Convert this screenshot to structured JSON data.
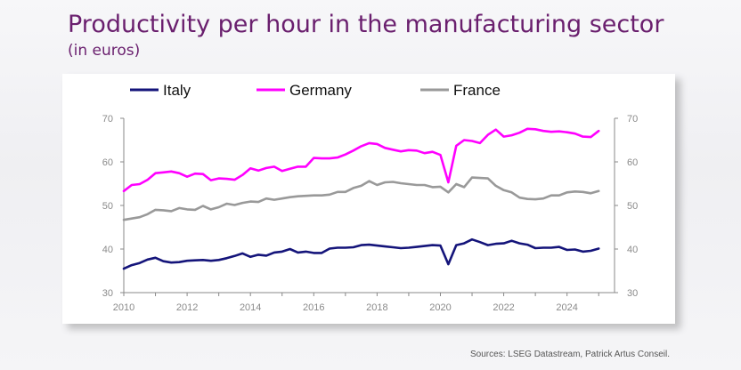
{
  "header": {
    "title": "Productivity per hour in the manufacturing sector",
    "subtitle": "(in euros)"
  },
  "footer": {
    "source": "Sources: LSEG Datastream, Patrick Artus Conseil."
  },
  "colors": {
    "title": "#6a1f6e",
    "italy": "#14147a",
    "germany": "#ff00ff",
    "france": "#999999",
    "axis": "#888888"
  },
  "chart_data": {
    "type": "line",
    "title": "Productivity per hour in the manufacturing sector",
    "subtitle": "(in euros)",
    "xlim": [
      2010,
      2025.5
    ],
    "ylim": [
      30,
      70
    ],
    "x_ticks": [
      "2010",
      "2012",
      "2014",
      "2016",
      "2018",
      "2020",
      "2022",
      "2024"
    ],
    "y_ticks": [
      "30",
      "40",
      "50",
      "60",
      "70"
    ],
    "right_axis_ticks": [
      "30",
      "40",
      "50",
      "60",
      "70"
    ],
    "legend_position": "top",
    "grid": false,
    "x": [
      2010.0,
      2010.25,
      2010.5,
      2010.75,
      2011.0,
      2011.25,
      2011.5,
      2011.75,
      2012.0,
      2012.25,
      2012.5,
      2012.75,
      2013.0,
      2013.25,
      2013.5,
      2013.75,
      2014.0,
      2014.25,
      2014.5,
      2014.75,
      2015.0,
      2015.25,
      2015.5,
      2015.75,
      2016.0,
      2016.25,
      2016.5,
      2016.75,
      2017.0,
      2017.25,
      2017.5,
      2017.75,
      2018.0,
      2018.25,
      2018.5,
      2018.75,
      2019.0,
      2019.25,
      2019.5,
      2019.75,
      2020.0,
      2020.25,
      2020.5,
      2020.75,
      2021.0,
      2021.25,
      2021.5,
      2021.75,
      2022.0,
      2022.25,
      2022.5,
      2022.75,
      2023.0,
      2023.25,
      2023.5,
      2023.75,
      2024.0,
      2024.25,
      2024.5,
      2024.75,
      2025.0
    ],
    "series": [
      {
        "name": "Italy",
        "color": "#14147a",
        "values": [
          35.5,
          36.3,
          36.8,
          37.6,
          38.0,
          37.2,
          36.9,
          37.0,
          37.3,
          37.4,
          37.5,
          37.3,
          37.5,
          37.9,
          38.4,
          39.0,
          38.2,
          38.7,
          38.5,
          39.2,
          39.4,
          40.0,
          39.2,
          39.4,
          39.1,
          39.1,
          40.1,
          40.3,
          40.3,
          40.4,
          40.9,
          41.0,
          40.8,
          40.6,
          40.4,
          40.2,
          40.3,
          40.5,
          40.7,
          40.9,
          40.8,
          36.5,
          40.9,
          41.3,
          42.2,
          41.6,
          40.9,
          41.2,
          41.3,
          41.9,
          41.3,
          41.0,
          40.2,
          40.3,
          40.3,
          40.5,
          39.8,
          39.9,
          39.4,
          39.6,
          40.1
        ]
      },
      {
        "name": "Germany",
        "color": "#ff00ff",
        "values": [
          53.3,
          54.7,
          54.9,
          55.9,
          57.4,
          57.6,
          57.8,
          57.4,
          56.6,
          57.3,
          57.2,
          55.8,
          56.2,
          56.1,
          55.9,
          57.0,
          58.5,
          58.0,
          58.6,
          58.9,
          57.9,
          58.4,
          58.9,
          58.9,
          60.9,
          60.8,
          60.8,
          61.0,
          61.7,
          62.6,
          63.6,
          64.3,
          64.1,
          63.2,
          62.8,
          62.4,
          62.7,
          62.6,
          62.0,
          62.3,
          61.6,
          55.3,
          63.7,
          65.0,
          64.8,
          64.3,
          66.2,
          67.4,
          65.8,
          66.1,
          66.7,
          67.6,
          67.5,
          67.1,
          66.9,
          67.0,
          66.8,
          66.5,
          65.8,
          65.7,
          67.1
        ]
      },
      {
        "name": "France",
        "color": "#999999",
        "values": [
          46.7,
          47.0,
          47.3,
          48.0,
          49.0,
          48.9,
          48.7,
          49.4,
          49.1,
          49.0,
          49.9,
          49.1,
          49.6,
          50.4,
          50.1,
          50.6,
          50.9,
          50.8,
          51.6,
          51.3,
          51.6,
          51.9,
          52.1,
          52.2,
          52.3,
          52.3,
          52.5,
          53.1,
          53.1,
          54.0,
          54.5,
          55.6,
          54.7,
          55.3,
          55.4,
          55.1,
          54.9,
          54.7,
          54.7,
          54.2,
          54.3,
          53.0,
          54.9,
          54.2,
          56.4,
          56.3,
          56.2,
          54.5,
          53.5,
          53.0,
          51.8,
          51.5,
          51.4,
          51.6,
          52.3,
          52.3,
          53.0,
          53.2,
          53.1,
          52.8,
          53.3
        ]
      }
    ]
  }
}
